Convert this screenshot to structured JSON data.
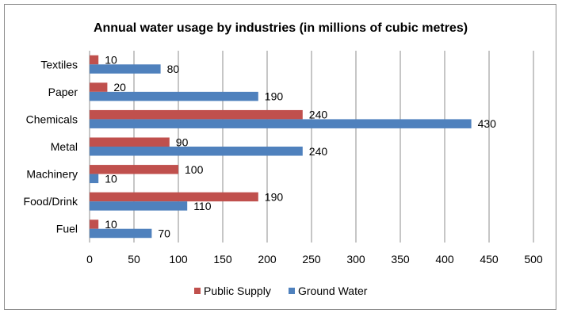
{
  "chart_data": {
    "type": "bar",
    "orientation": "horizontal",
    "title": "Annual water usage by industries (in millions of cubic metres)",
    "categories": [
      "Textiles",
      "Paper",
      "Chemicals",
      "Metal",
      "Machinery",
      "Food/Drink",
      "Fuel"
    ],
    "series": [
      {
        "name": "Public Supply",
        "color": "#c0504d",
        "values": [
          10,
          20,
          240,
          90,
          100,
          190,
          10
        ]
      },
      {
        "name": "Ground Water",
        "color": "#4f81bd",
        "values": [
          80,
          190,
          430,
          240,
          10,
          110,
          70
        ]
      }
    ],
    "xlim": [
      0,
      500
    ],
    "xticks": [
      "0",
      "50",
      "100",
      "150",
      "200",
      "250",
      "300",
      "350",
      "400",
      "450",
      "500"
    ],
    "grid": true,
    "legend": "bottom",
    "xlabel": "",
    "ylabel": ""
  }
}
